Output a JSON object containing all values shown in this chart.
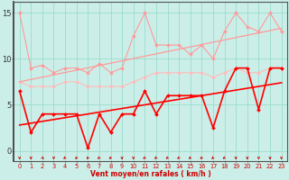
{
  "xlabel": "Vent moyen/en rafales ( km/h )",
  "bg_color": "#cceee8",
  "grid_color": "#99ddcc",
  "x": [
    0,
    1,
    2,
    3,
    4,
    5,
    6,
    7,
    8,
    9,
    10,
    11,
    12,
    13,
    14,
    15,
    16,
    17,
    18,
    19,
    20,
    21,
    22,
    23
  ],
  "ylim": [
    -1.1,
    16.2
  ],
  "xlim": [
    -0.5,
    23.5
  ],
  "yticks": [
    0,
    5,
    10,
    15
  ],
  "series": [
    {
      "color": "#ff9999",
      "lw": 0.8,
      "marker": "D",
      "ms": 2.0,
      "values": [
        15.0,
        9.0,
        9.3,
        8.5,
        9.0,
        9.0,
        8.5,
        9.5,
        8.5,
        9.0,
        12.5,
        15.0,
        11.5,
        11.5,
        11.5,
        10.5,
        11.5,
        10.0,
        13.0,
        15.0,
        13.5,
        13.0,
        15.0,
        13.0
      ]
    },
    {
      "color": "#ffbbbb",
      "lw": 0.8,
      "marker": "D",
      "ms": 2.0,
      "values": [
        7.5,
        7.0,
        7.0,
        7.0,
        7.5,
        7.5,
        7.0,
        7.0,
        7.0,
        7.0,
        7.5,
        8.0,
        8.5,
        8.5,
        8.5,
        8.5,
        8.5,
        8.0,
        8.5,
        9.0,
        8.5,
        8.5,
        9.0,
        9.0
      ]
    },
    {
      "color": "#ff9999",
      "lw": 0.9,
      "marker": null,
      "ms": 0,
      "values": [
        7.5,
        7.76,
        8.01,
        8.26,
        8.52,
        8.77,
        9.02,
        9.28,
        9.53,
        9.78,
        10.04,
        10.29,
        10.54,
        10.8,
        11.05,
        11.3,
        11.56,
        11.81,
        12.06,
        12.32,
        12.57,
        12.82,
        13.08,
        13.33
      ]
    },
    {
      "color": "#ff0000",
      "lw": 1.2,
      "marker": "D",
      "ms": 2.0,
      "values": [
        6.5,
        2.0,
        4.0,
        4.0,
        4.0,
        4.0,
        0.3,
        4.0,
        2.0,
        4.0,
        4.0,
        6.5,
        4.0,
        6.0,
        6.0,
        6.0,
        6.0,
        2.5,
        6.5,
        9.0,
        9.0,
        4.5,
        9.0,
        9.0
      ]
    },
    {
      "color": "#ff0000",
      "lw": 1.2,
      "marker": null,
      "ms": 0,
      "values": [
        2.8,
        3.0,
        3.2,
        3.4,
        3.6,
        3.8,
        4.0,
        4.2,
        4.4,
        4.6,
        4.8,
        5.0,
        5.2,
        5.4,
        5.6,
        5.8,
        6.0,
        6.2,
        6.4,
        6.6,
        6.8,
        7.0,
        7.2,
        7.4
      ]
    }
  ],
  "arrow_angles": [
    180,
    180,
    135,
    180,
    230,
    210,
    210,
    230,
    225,
    180,
    180,
    230,
    230,
    230,
    230,
    230,
    225,
    225,
    230,
    180,
    180,
    180,
    180,
    180
  ],
  "arrow_color": "#cc0000",
  "spine_color": "#555555",
  "tick_label_color_x": "#cc0000",
  "tick_label_color_y": "#333333",
  "xlabel_color": "#cc0000",
  "xlabel_fontsize": 5.5,
  "xtick_fontsize": 4.8,
  "ytick_fontsize": 6.0
}
